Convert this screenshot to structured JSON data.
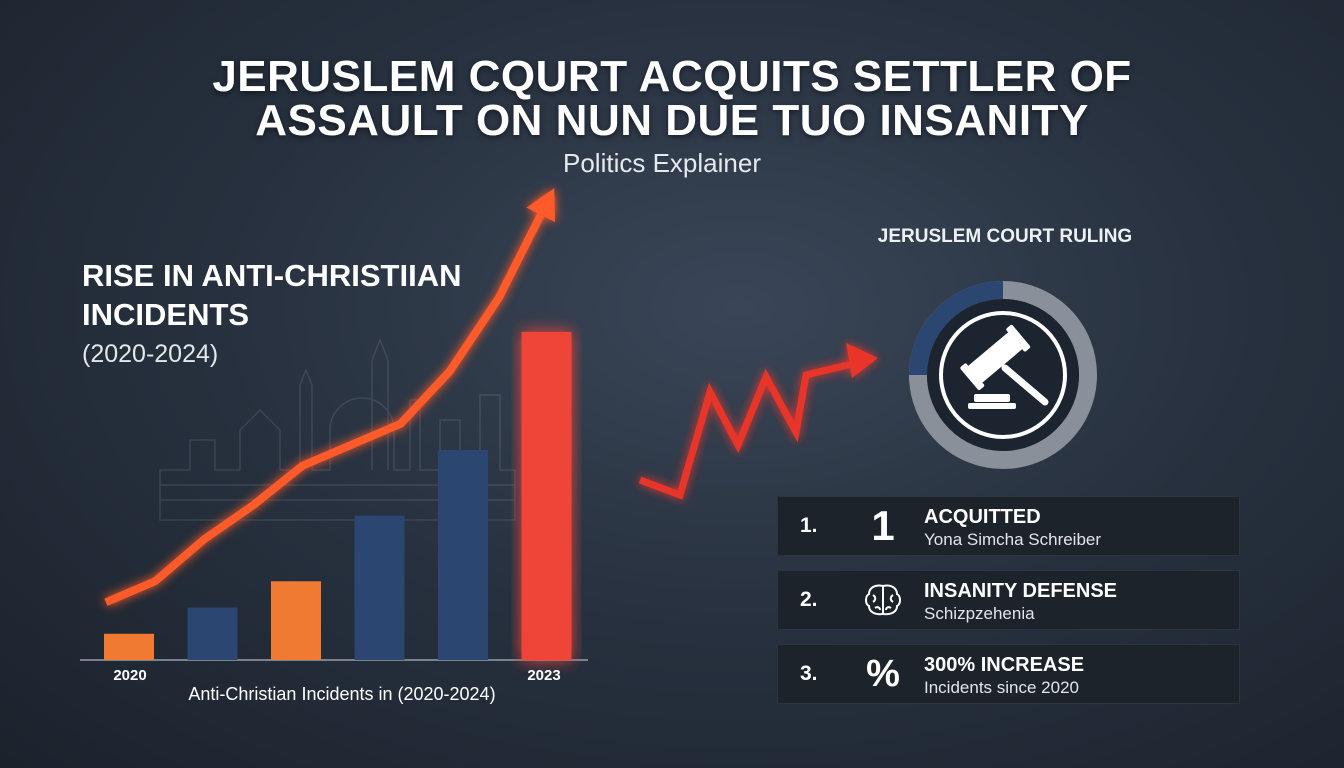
{
  "header": {
    "title_line1": "JERUSLEM CQURT ACQUITS SETTLER OF",
    "title_line2": "ASSAULT ON NUN DUE TUO INSANITY",
    "subtitle": "Politics Explainer"
  },
  "chart_data": {
    "type": "bar",
    "title_line1": "RISE IN ANTI-CHRISTIIAN",
    "title_line2": "INCIDENTS",
    "title_range": "(2020-2024)",
    "caption": "Anti-Christian Incidents in (2020-2024)",
    "tick_labels": [
      "2020",
      "2023"
    ],
    "values": [
      1,
      2,
      3,
      5.5,
      8,
      12.5
    ],
    "bar_colors": [
      "#f07a32",
      "#2b4670",
      "#f07a32",
      "#2b4670",
      "#2b4670",
      "#ef4438"
    ],
    "trend_line": [
      2.2,
      3.0,
      4.6,
      5.9,
      7.4,
      8.2,
      9.0,
      11.0,
      13.8,
      17.5
    ],
    "trend_color": "#ff5a2a",
    "ylim": [
      0,
      16
    ]
  },
  "ruling": {
    "title": "JERUSLEM COURT RULING",
    "donut_colors": [
      "#2b4670",
      "#8a9099"
    ],
    "icon": "gavel-icon"
  },
  "facts": [
    {
      "number": "1.",
      "icon_text": "1",
      "label": "ACQUITTED",
      "desc": "Yona Simcha Schreiber"
    },
    {
      "number": "2.",
      "icon": "brain-icon",
      "label": "INSANITY DEFENSE",
      "desc": "Schizpzehenia"
    },
    {
      "number": "3.",
      "icon_text": "%",
      "label": "300% INCREASE",
      "desc": "Incidents since 2020"
    }
  ],
  "colors": {
    "accent_red": "#ef4438",
    "accent_orange": "#f07a32",
    "navy": "#2b4670"
  }
}
